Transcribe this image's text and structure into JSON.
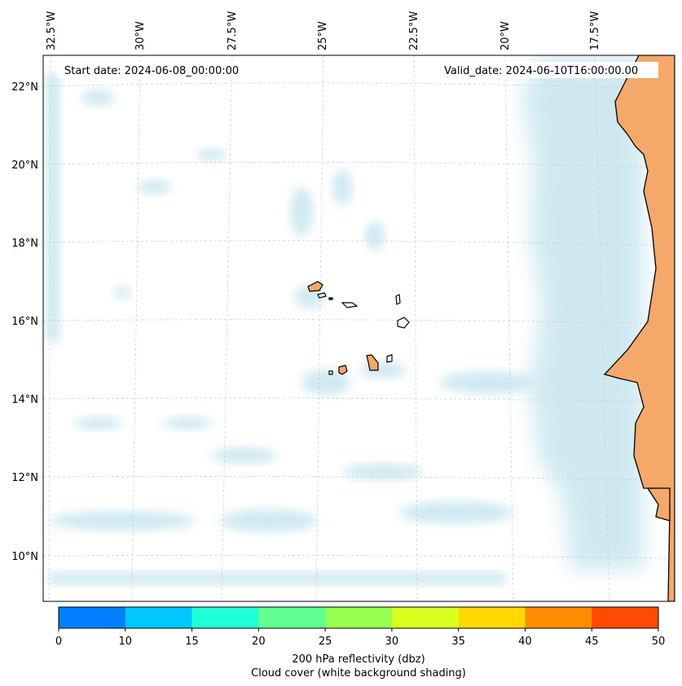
{
  "map": {
    "start_date": "Start date: 2024-06-08_00:00:00",
    "valid_date": "Valid_date: 2024-06-10T16:00:00.00",
    "lon_labels": [
      "32.5°W",
      "30°W",
      "27.5°W",
      "25°W",
      "22.5°W",
      "20°W",
      "17.5°W"
    ],
    "lat_labels": [
      "22°N",
      "20°N",
      "18°N",
      "16°N",
      "14°N",
      "12°N",
      "10°N"
    ],
    "land_color": "#f4a869",
    "cloud_color": "#a9d8e6"
  },
  "colorbar": {
    "ticks": [
      "0",
      "10",
      "15",
      "20",
      "25",
      "30",
      "35",
      "40",
      "45",
      "50"
    ],
    "colors": [
      "#0080ff",
      "#00c8ff",
      "#20ffd8",
      "#60ff90",
      "#98ff50",
      "#d8ff20",
      "#ffd800",
      "#ff8c00",
      "#ff4a00"
    ],
    "label_line1": "200 hPa reflectivity (dbz)",
    "label_line2": "Cloud cover (white background shading)"
  }
}
